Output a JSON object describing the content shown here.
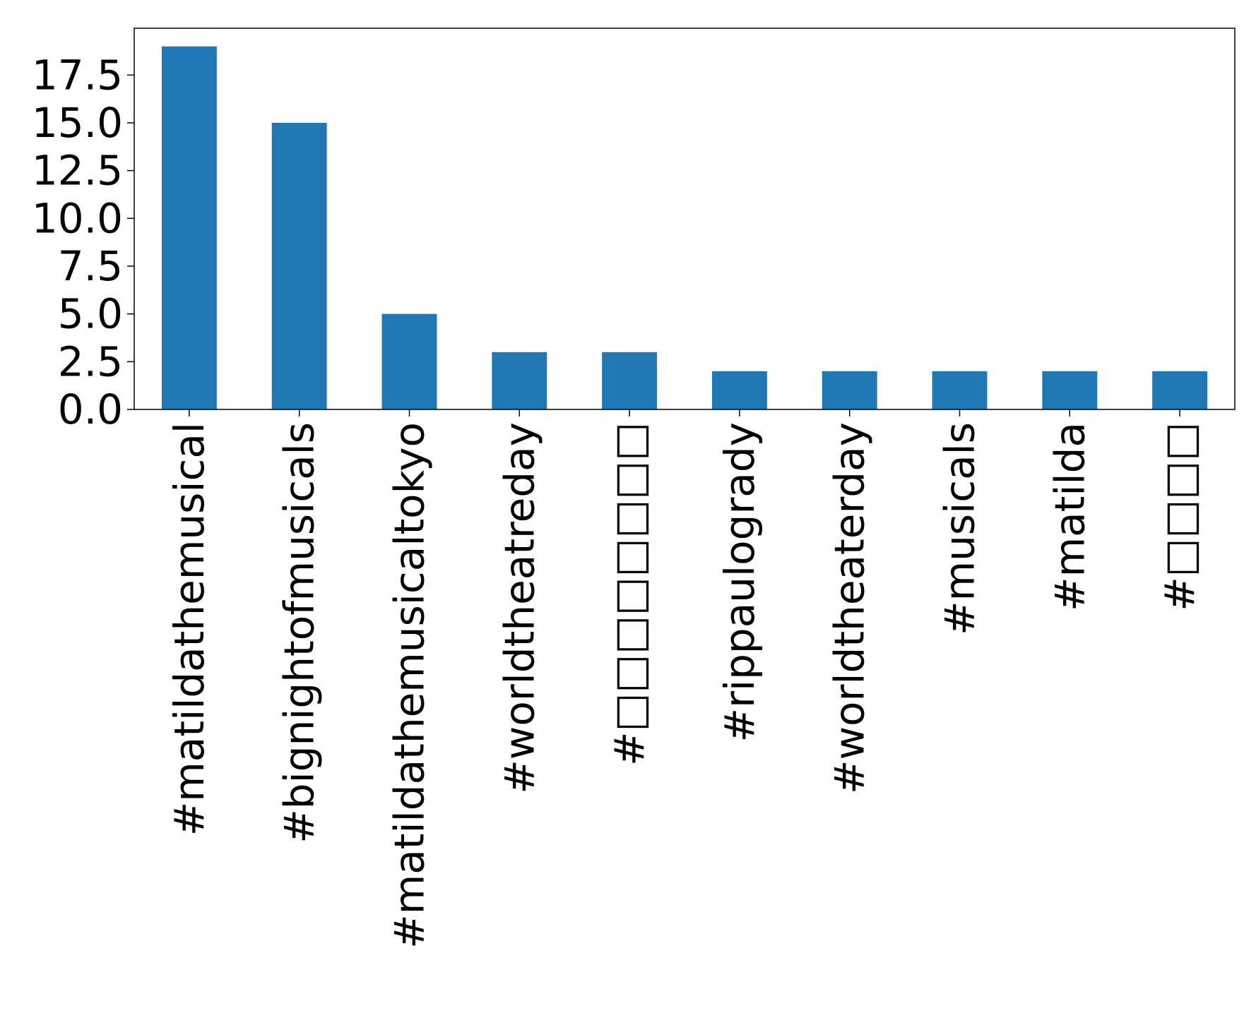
{
  "chart_data": {
    "type": "bar",
    "title": "",
    "xlabel": "",
    "ylabel": "",
    "categories": [
      "#matildathemusical",
      "#bignightofmusicals",
      "#matildathemusicaltokyo",
      "#worldtheatreday",
      "#□□□□□□□□",
      "#rippaulogrady",
      "#worldtheaterday",
      "#musicals",
      "#matilda",
      "#□□□□"
    ],
    "values": [
      19,
      15,
      5,
      3,
      3,
      2,
      2,
      2,
      2,
      2
    ],
    "ylim": [
      0,
      19.95
    ],
    "yticks": [
      0.0,
      2.5,
      5.0,
      7.5,
      10.0,
      12.5,
      15.0,
      17.5
    ],
    "ytick_labels": [
      "0.0",
      "2.5",
      "5.0",
      "7.5",
      "10.0",
      "12.5",
      "15.0",
      "17.5"
    ],
    "grid": false,
    "legend": "none",
    "colors": {
      "bar": "#1f77b4",
      "axis": "#000000",
      "background": "#ffffff"
    }
  }
}
